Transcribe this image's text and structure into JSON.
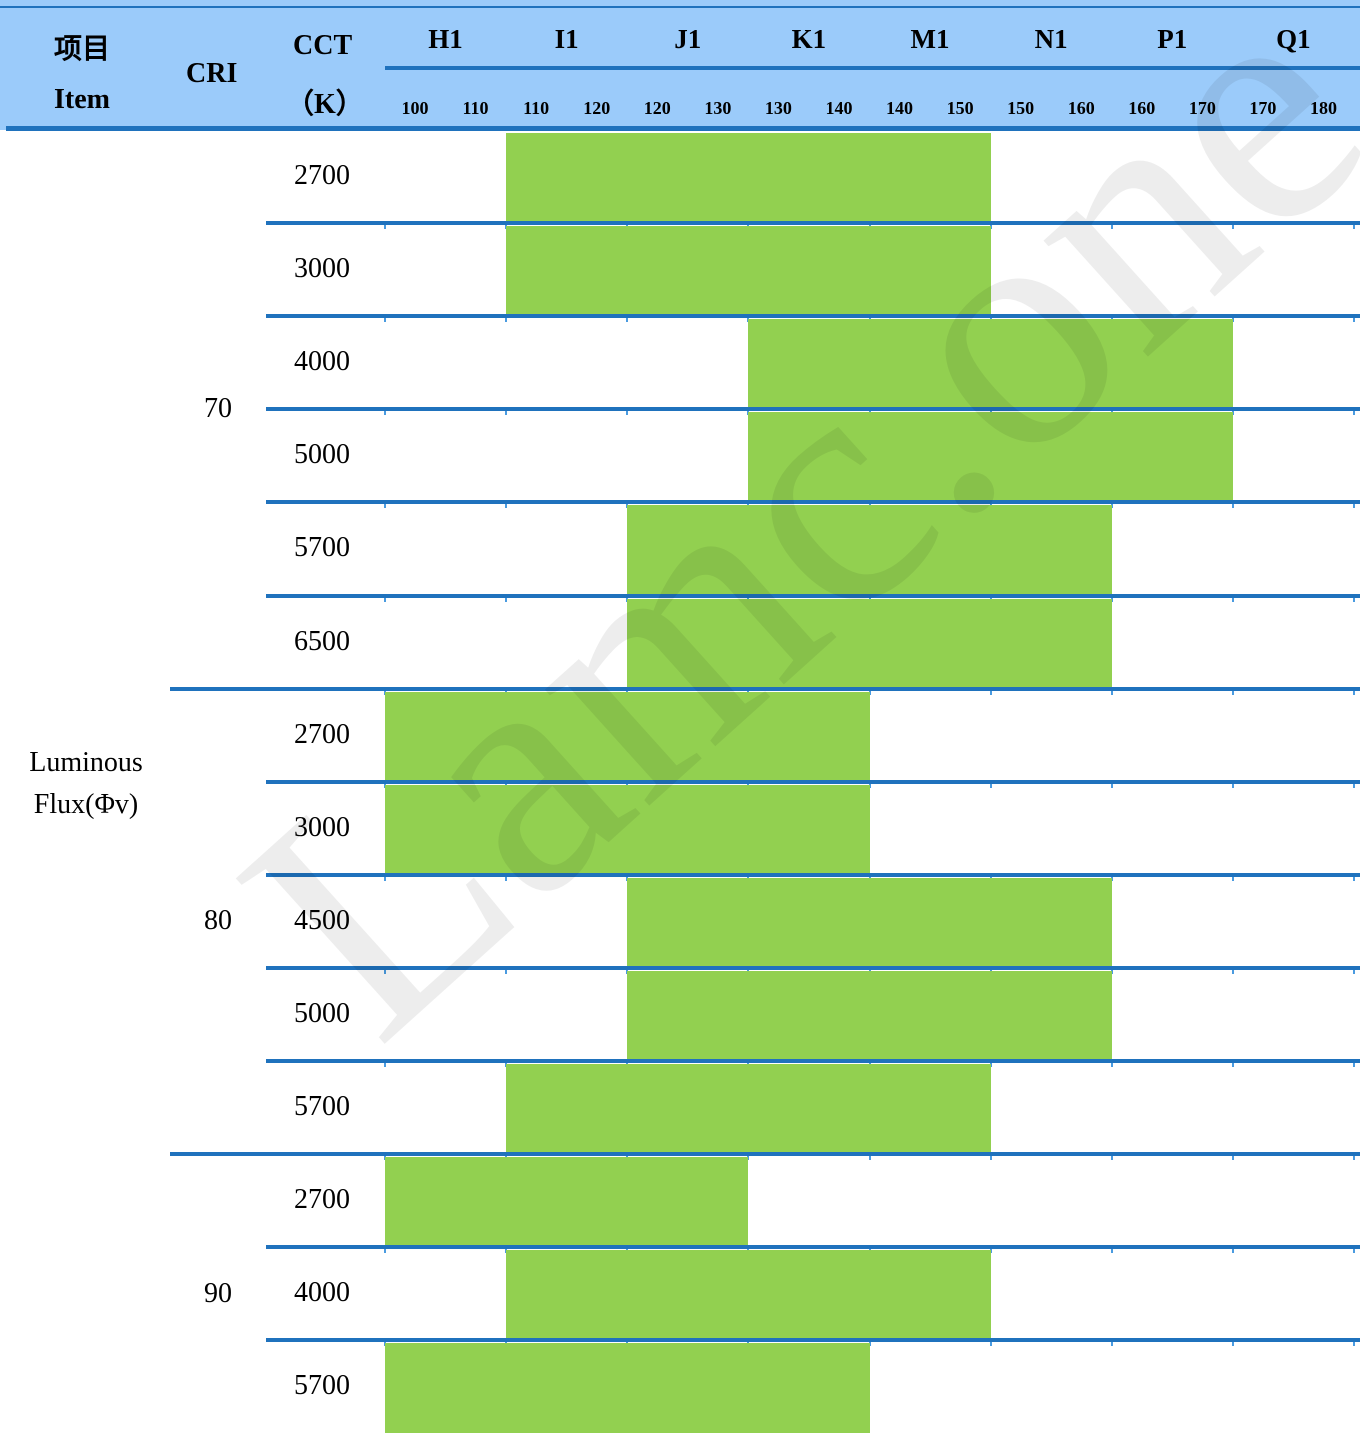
{
  "header": {
    "item_cn": "项目",
    "item_en": "Item",
    "cri": "CRI",
    "cct": "CCT",
    "cct_unit": "（K）"
  },
  "bins": [
    {
      "name": "H1",
      "min": "100",
      "max": "110"
    },
    {
      "name": "I1",
      "min": "110",
      "max": "120"
    },
    {
      "name": "J1",
      "min": "120",
      "max": "130"
    },
    {
      "name": "K1",
      "min": "130",
      "max": "140"
    },
    {
      "name": "M1",
      "min": "140",
      "max": "150"
    },
    {
      "name": "N1",
      "min": "150",
      "max": "160"
    },
    {
      "name": "P1",
      "min": "160",
      "max": "170"
    },
    {
      "name": "Q1",
      "min": "170",
      "max": "180"
    }
  ],
  "item": {
    "line1": "Luminous",
    "line2": "Flux(Φv)"
  },
  "groups": [
    {
      "cri": "70",
      "rows": [
        {
          "cct": "2700",
          "from": 1,
          "to": 5
        },
        {
          "cct": "3000",
          "from": 1,
          "to": 5
        },
        {
          "cct": "4000",
          "from": 3,
          "to": 7
        },
        {
          "cct": "5000",
          "from": 3,
          "to": 7
        },
        {
          "cct": "5700",
          "from": 2,
          "to": 6
        },
        {
          "cct": "6500",
          "from": 2,
          "to": 6
        }
      ]
    },
    {
      "cri": "80",
      "rows": [
        {
          "cct": "2700",
          "from": 0,
          "to": 4
        },
        {
          "cct": "3000",
          "from": 0,
          "to": 4
        },
        {
          "cct": "4500",
          "from": 2,
          "to": 6
        },
        {
          "cct": "5000",
          "from": 2,
          "to": 6
        },
        {
          "cct": "5700",
          "from": 1,
          "to": 5
        }
      ]
    },
    {
      "cri": "90",
      "rows": [
        {
          "cct": "2700",
          "from": 0,
          "to": 3
        },
        {
          "cct": "4000",
          "from": 1,
          "to": 5
        },
        {
          "cct": "5700",
          "from": 0,
          "to": 4
        }
      ]
    }
  ],
  "watermark": "Lamc.one",
  "colors": {
    "header_bg": "#9bcbfa",
    "rule": "#1f72bd",
    "fill": "#92d050"
  }
}
